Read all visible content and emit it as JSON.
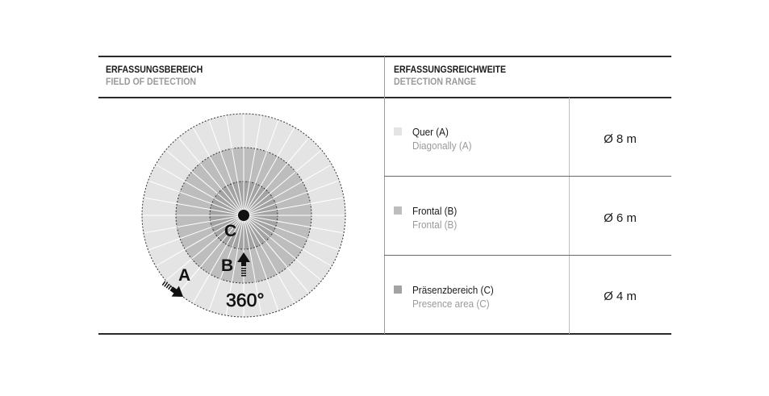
{
  "header": {
    "left": {
      "de": "ERFASSUNGSBEREICH",
      "en": "FIELD OF DETECTION"
    },
    "right": {
      "de": "ERFASSUNGSREICHWEITE",
      "en": "DETECTION RANGE"
    }
  },
  "diagram": {
    "labels": {
      "a": "A",
      "b": "B",
      "c": "C",
      "angle": "360°"
    },
    "colors": {
      "a": "#e4e4e4",
      "b": "#bdbdbd",
      "c": "#a3a3a3"
    }
  },
  "rows": [
    {
      "de": "Quer (A)",
      "en": "Diagonally (A)",
      "value": "Ø 8 m",
      "color": "#e4e4e4"
    },
    {
      "de": "Frontal (B)",
      "en": "Frontal (B)",
      "value": "Ø 6 m",
      "color": "#bdbdbd"
    },
    {
      "de": "Präsenzbereich (C)",
      "en": "Presence area (C)",
      "value": "Ø 4 m",
      "color": "#a3a3a3"
    }
  ]
}
